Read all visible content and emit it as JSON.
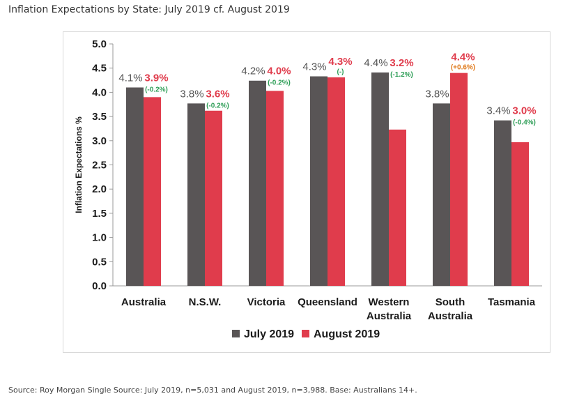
{
  "page_title": "Inflation Expectations by State: July 2019 cf. August 2019",
  "source_note": "Source: Roy Morgan Single Source: July 2019, n=5,031 and August 2019, n=3,988. Base: Australians 14+.",
  "colors": {
    "july": "#595556",
    "august": "#e03c4c",
    "change_negative": "#2e9e57",
    "change_positive": "#e07b1f",
    "change_neutral": "#2e9e57"
  },
  "chart_data": {
    "type": "bar",
    "title": "",
    "xlabel": "",
    "ylabel": "Inflation Expectations %",
    "ylim": [
      0,
      5
    ],
    "yticks": [
      "0.0",
      "0.5",
      "1.0",
      "1.5",
      "2.0",
      "2.5",
      "3.0",
      "3.5",
      "4.0",
      "4.5",
      "5.0"
    ],
    "categories": [
      [
        "Australia"
      ],
      [
        "N.S.W."
      ],
      [
        "Victoria"
      ],
      [
        "Queensland"
      ],
      [
        "Western",
        "Australia"
      ],
      [
        "South",
        "Australia"
      ],
      [
        "Tasmania"
      ]
    ],
    "series": [
      {
        "name": "July 2019",
        "values": [
          4.1,
          3.77,
          4.24,
          4.33,
          4.41,
          3.77,
          3.42
        ],
        "labels": [
          "4.1%",
          "3.8%",
          "4.2%",
          "4.3%",
          "4.4%",
          "3.8%",
          "3.4%"
        ]
      },
      {
        "name": "August 2019",
        "values": [
          3.9,
          3.62,
          4.03,
          4.31,
          3.23,
          4.4,
          2.97
        ],
        "labels": [
          "3.9%",
          "3.6%",
          "4.0%",
          "4.3%",
          "3.2%",
          "4.4%",
          "3.0%"
        ],
        "changes": [
          "(-0.2%)",
          "(-0.2%)",
          "(-0.2%)",
          "(-)",
          "(-1.2%)",
          "(+0.6%)",
          "(-0.4%)"
        ],
        "change_direction": [
          "neg",
          "neg",
          "neg",
          "neutral",
          "neg",
          "pos",
          "neg"
        ]
      }
    ],
    "legend": {
      "position": "bottom",
      "entries": [
        "July 2019",
        "August 2019"
      ]
    }
  }
}
